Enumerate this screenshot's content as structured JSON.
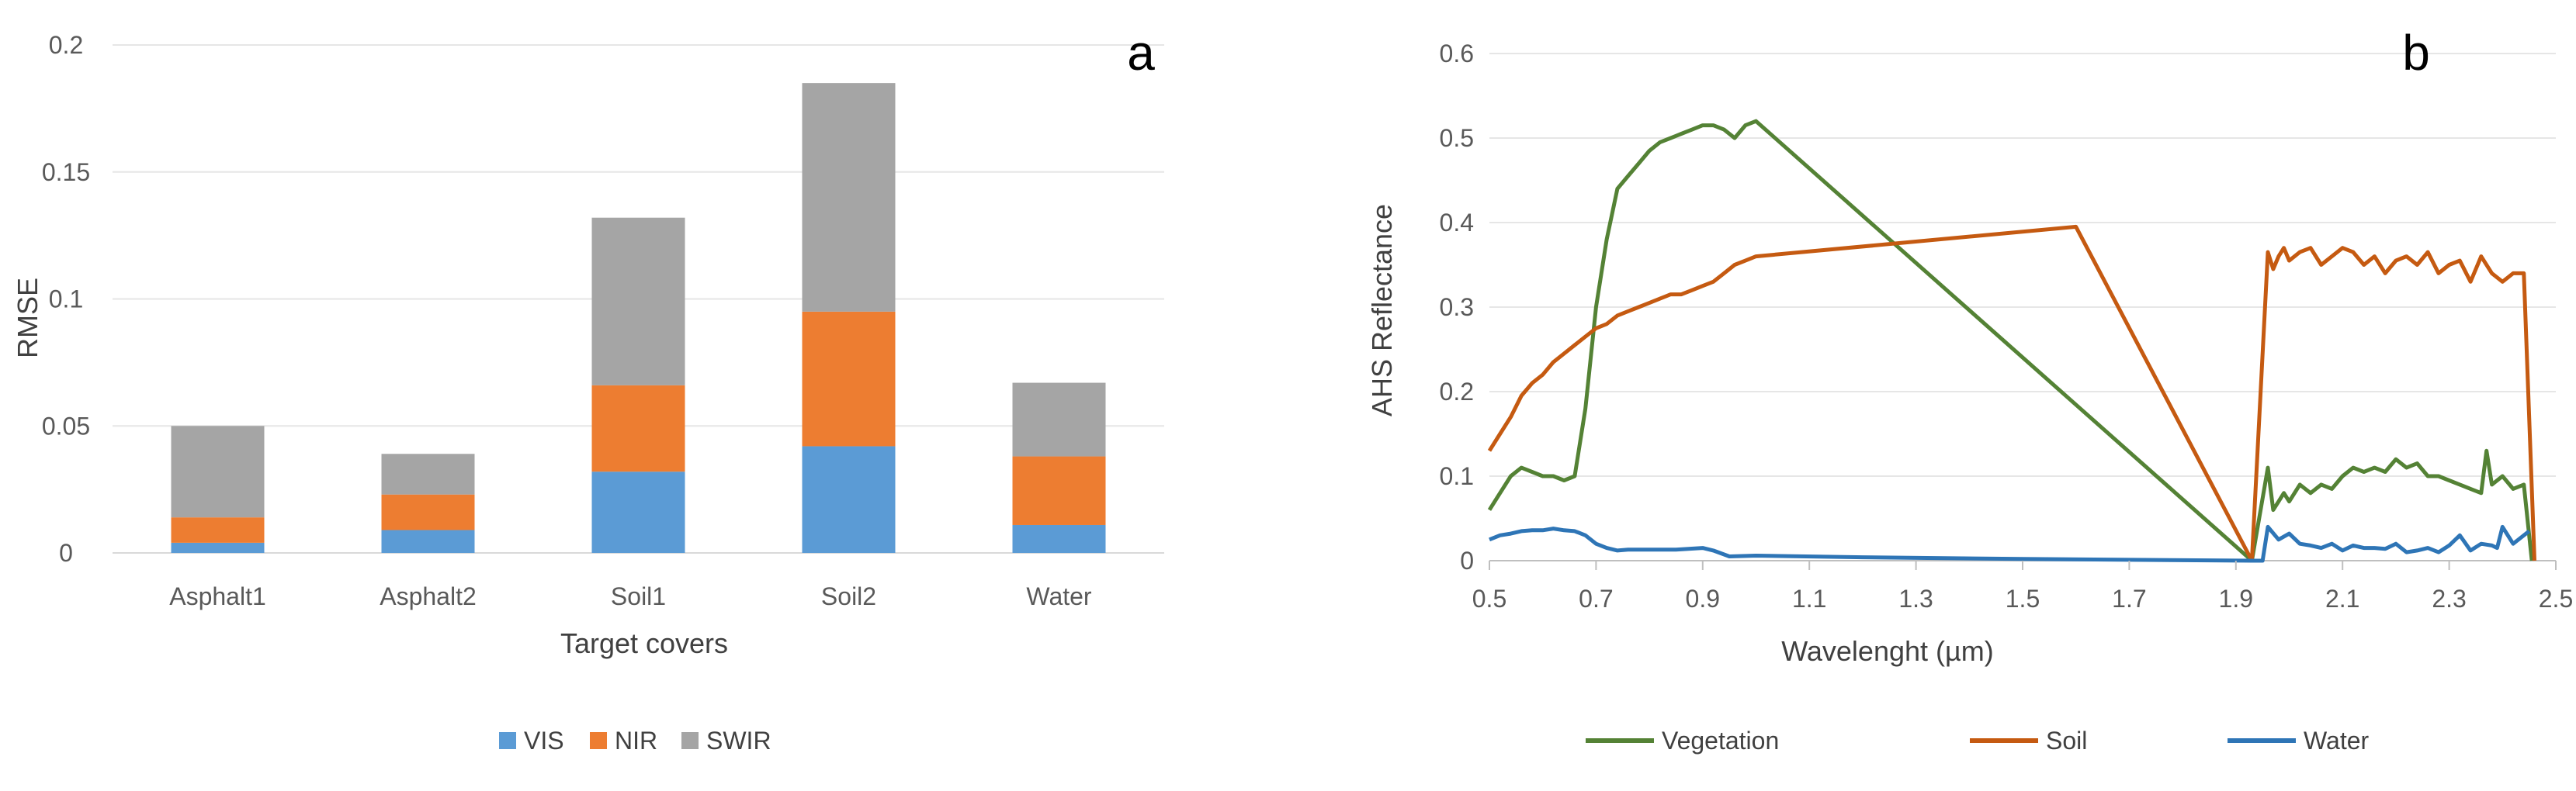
{
  "chart_data": [
    {
      "type": "bar",
      "stacked": true,
      "panel_label": "a",
      "title": "",
      "xlabel": "Target covers",
      "ylabel": "RMSE",
      "ylim": [
        0,
        0.2
      ],
      "yticks": [
        "0",
        "0.05",
        "0.1",
        "0.15",
        "0.2"
      ],
      "categories": [
        "Asphalt1",
        "Asphalt2",
        "Soil1",
        "Soil2",
        "Water"
      ],
      "series": [
        {
          "name": "VIS",
          "color": "#5B9BD5",
          "values": [
            0.004,
            0.009,
            0.032,
            0.042,
            0.011
          ]
        },
        {
          "name": "NIR",
          "color": "#ED7D31",
          "values": [
            0.01,
            0.014,
            0.034,
            0.053,
            0.027
          ]
        },
        {
          "name": "SWIR",
          "color": "#A5A5A5",
          "values": [
            0.036,
            0.016,
            0.066,
            0.09,
            0.029
          ]
        }
      ],
      "legend": "bottom"
    },
    {
      "type": "line",
      "panel_label": "b",
      "title": "",
      "xlabel": "Wavelenght (µm)",
      "ylabel": "AHS Reflectance",
      "xlim": [
        0.5,
        2.5
      ],
      "ylim": [
        0,
        0.6
      ],
      "xticks": [
        "0.5",
        "0.7",
        "0.9",
        "1.1",
        "1.3",
        "1.5",
        "1.7",
        "1.9",
        "2.1",
        "2.3",
        "2.5"
      ],
      "yticks": [
        "0",
        "0.1",
        "0.2",
        "0.3",
        "0.4",
        "0.5",
        "0.6"
      ],
      "legend": "bottom",
      "series": [
        {
          "name": "Vegetation",
          "color": "#548235",
          "x": [
            0.5,
            0.52,
            0.54,
            0.56,
            0.58,
            0.6,
            0.62,
            0.64,
            0.66,
            0.68,
            0.7,
            0.72,
            0.74,
            0.76,
            0.78,
            0.8,
            0.82,
            0.84,
            0.86,
            0.88,
            0.9,
            0.92,
            0.94,
            0.96,
            0.98,
            1.0,
            1.93,
            1.96,
            1.97,
            1.98,
            1.99,
            2.0,
            2.02,
            2.04,
            2.06,
            2.08,
            2.1,
            2.12,
            2.14,
            2.16,
            2.18,
            2.2,
            2.22,
            2.24,
            2.26,
            2.28,
            2.3,
            2.32,
            2.34,
            2.36,
            2.37,
            2.38,
            2.4,
            2.42,
            2.44,
            2.455
          ],
          "y": [
            0.06,
            0.08,
            0.1,
            0.11,
            0.105,
            0.1,
            0.1,
            0.095,
            0.1,
            0.18,
            0.3,
            0.38,
            0.44,
            0.455,
            0.47,
            0.485,
            0.495,
            0.5,
            0.505,
            0.51,
            0.515,
            0.515,
            0.51,
            0.5,
            0.515,
            0.52,
            0.0,
            0.11,
            0.06,
            0.07,
            0.08,
            0.07,
            0.09,
            0.08,
            0.09,
            0.085,
            0.1,
            0.11,
            0.105,
            0.11,
            0.105,
            0.12,
            0.11,
            0.115,
            0.1,
            0.1,
            0.095,
            0.09,
            0.085,
            0.08,
            0.13,
            0.09,
            0.1,
            0.085,
            0.09,
            0.0
          ]
        },
        {
          "name": "Soil",
          "color": "#C55A11",
          "x": [
            0.5,
            0.52,
            0.54,
            0.56,
            0.58,
            0.6,
            0.62,
            0.64,
            0.66,
            0.68,
            0.7,
            0.72,
            0.74,
            0.76,
            0.78,
            0.8,
            0.82,
            0.84,
            0.86,
            0.88,
            0.9,
            0.92,
            0.94,
            0.96,
            0.98,
            1.0,
            1.6,
            1.93,
            1.96,
            1.97,
            1.98,
            1.99,
            2.0,
            2.02,
            2.04,
            2.06,
            2.08,
            2.1,
            2.12,
            2.14,
            2.16,
            2.18,
            2.2,
            2.22,
            2.24,
            2.26,
            2.28,
            2.3,
            2.32,
            2.34,
            2.36,
            2.38,
            2.4,
            2.42,
            2.44,
            2.46
          ],
          "y": [
            0.13,
            0.15,
            0.17,
            0.195,
            0.21,
            0.22,
            0.235,
            0.245,
            0.255,
            0.265,
            0.275,
            0.28,
            0.29,
            0.295,
            0.3,
            0.305,
            0.31,
            0.315,
            0.315,
            0.32,
            0.325,
            0.33,
            0.34,
            0.35,
            0.355,
            0.36,
            0.395,
            0.0,
            0.365,
            0.345,
            0.36,
            0.37,
            0.355,
            0.365,
            0.37,
            0.35,
            0.36,
            0.37,
            0.365,
            0.35,
            0.36,
            0.34,
            0.355,
            0.36,
            0.35,
            0.365,
            0.34,
            0.35,
            0.355,
            0.33,
            0.36,
            0.34,
            0.33,
            0.34,
            0.34,
            0.0
          ]
        },
        {
          "name": "Water",
          "color": "#2E75B6",
          "x": [
            0.5,
            0.52,
            0.54,
            0.56,
            0.58,
            0.6,
            0.62,
            0.64,
            0.66,
            0.68,
            0.7,
            0.72,
            0.74,
            0.76,
            0.8,
            0.85,
            0.9,
            0.92,
            0.95,
            1.0,
            1.2,
            1.5,
            1.93,
            1.95,
            1.96,
            1.98,
            2.0,
            2.02,
            2.04,
            2.06,
            2.08,
            2.1,
            2.12,
            2.14,
            2.16,
            2.18,
            2.2,
            2.22,
            2.24,
            2.26,
            2.28,
            2.3,
            2.32,
            2.34,
            2.36,
            2.38,
            2.39,
            2.4,
            2.42,
            2.44,
            2.45
          ],
          "y": [
            0.025,
            0.03,
            0.032,
            0.035,
            0.036,
            0.036,
            0.038,
            0.036,
            0.035,
            0.03,
            0.02,
            0.015,
            0.012,
            0.013,
            0.013,
            0.013,
            0.015,
            0.012,
            0.005,
            0.006,
            0.004,
            0.002,
            0.0,
            0.0,
            0.04,
            0.025,
            0.032,
            0.02,
            0.018,
            0.015,
            0.02,
            0.012,
            0.018,
            0.015,
            0.015,
            0.014,
            0.02,
            0.01,
            0.012,
            0.015,
            0.01,
            0.018,
            0.03,
            0.012,
            0.02,
            0.018,
            0.015,
            0.04,
            0.02,
            0.03,
            0.035
          ]
        }
      ]
    }
  ]
}
